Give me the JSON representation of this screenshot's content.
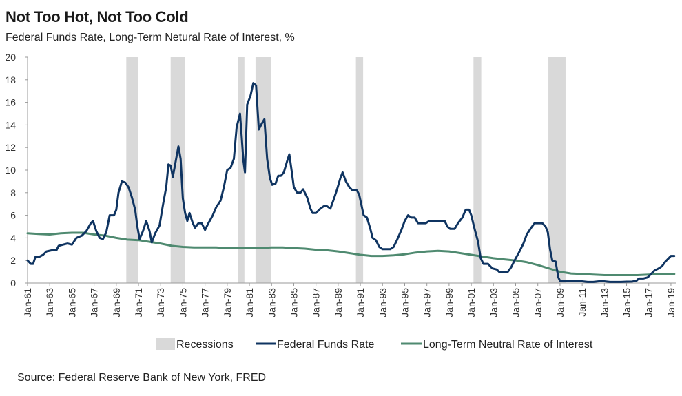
{
  "title": "Not Too Hot, Not Too Cold",
  "subtitle": "Federal Funds Rate, Long-Term Netural Rate of Interest, %",
  "source": "Source: Federal Reserve Bank of New York, FRED",
  "colors": {
    "fed": "#0f3461",
    "neutral": "#4f8a70",
    "recession": "#d9d9d9",
    "axis": "#9a9a9a"
  },
  "chart_data": {
    "type": "line",
    "title": "Not Too Hot, Not Too Cold",
    "subtitle": "Federal Funds Rate, Long-Term Netural Rate of Interest, %",
    "xlabel": "",
    "ylabel": "%",
    "xlim": [
      1961,
      2019.5
    ],
    "ylim": [
      0,
      20
    ],
    "y_ticks": [
      0,
      2,
      4,
      6,
      8,
      10,
      12,
      14,
      16,
      18,
      20
    ],
    "x_ticks": [
      {
        "value": 1961,
        "label": "Jan-61"
      },
      {
        "value": 1963,
        "label": "Jan-63"
      },
      {
        "value": 1965,
        "label": "Jan-65"
      },
      {
        "value": 1967,
        "label": "Jan-67"
      },
      {
        "value": 1969,
        "label": "Jan-69"
      },
      {
        "value": 1971,
        "label": "Jan-71"
      },
      {
        "value": 1973,
        "label": "Jan-73"
      },
      {
        "value": 1975,
        "label": "Jan-75"
      },
      {
        "value": 1977,
        "label": "Jan-77"
      },
      {
        "value": 1979,
        "label": "Jan-79"
      },
      {
        "value": 1981,
        "label": "Jan-81"
      },
      {
        "value": 1983,
        "label": "Jan-83"
      },
      {
        "value": 1985,
        "label": "Jan-85"
      },
      {
        "value": 1987,
        "label": "Jan-87"
      },
      {
        "value": 1989,
        "label": "Jan-89"
      },
      {
        "value": 1991,
        "label": "Jan-91"
      },
      {
        "value": 1993,
        "label": "Jan-93"
      },
      {
        "value": 1995,
        "label": "Jan-95"
      },
      {
        "value": 1997,
        "label": "Jan-97"
      },
      {
        "value": 1999,
        "label": "Jan-99"
      },
      {
        "value": 2001,
        "label": "Jan-01"
      },
      {
        "value": 2003,
        "label": "Jan-03"
      },
      {
        "value": 2005,
        "label": "Jan-05"
      },
      {
        "value": 2007,
        "label": "Jan-07"
      },
      {
        "value": 2009,
        "label": "Jan-09"
      },
      {
        "value": 2011,
        "label": "Jan-11"
      },
      {
        "value": 2013,
        "label": "Jan-13"
      },
      {
        "value": 2015,
        "label": "Jan-15"
      },
      {
        "value": 2017,
        "label": "Jan-17"
      },
      {
        "value": 2019,
        "label": "Jan-19"
      }
    ],
    "recessions": [
      {
        "start": 1969.9,
        "end": 1970.95
      },
      {
        "start": 1973.9,
        "end": 1975.2
      },
      {
        "start": 1980.0,
        "end": 1980.55
      },
      {
        "start": 1981.55,
        "end": 1982.95
      },
      {
        "start": 1990.6,
        "end": 1991.25
      },
      {
        "start": 2001.2,
        "end": 2001.9
      },
      {
        "start": 2007.95,
        "end": 2009.5
      }
    ],
    "series": [
      {
        "name": "Federal Funds Rate",
        "points": [
          [
            1961.0,
            2.0
          ],
          [
            1961.3,
            1.7
          ],
          [
            1961.5,
            1.7
          ],
          [
            1961.7,
            2.3
          ],
          [
            1962.0,
            2.3
          ],
          [
            1962.4,
            2.5
          ],
          [
            1962.7,
            2.8
          ],
          [
            1963.2,
            2.9
          ],
          [
            1963.6,
            2.9
          ],
          [
            1963.8,
            3.3
          ],
          [
            1964.2,
            3.4
          ],
          [
            1964.6,
            3.5
          ],
          [
            1965.0,
            3.4
          ],
          [
            1965.4,
            4.0
          ],
          [
            1965.9,
            4.2
          ],
          [
            1966.3,
            4.6
          ],
          [
            1966.7,
            5.3
          ],
          [
            1966.9,
            5.5
          ],
          [
            1967.2,
            4.6
          ],
          [
            1967.5,
            4.0
          ],
          [
            1967.8,
            3.9
          ],
          [
            1968.1,
            4.5
          ],
          [
            1968.4,
            6.0
          ],
          [
            1968.8,
            6.0
          ],
          [
            1969.0,
            6.5
          ],
          [
            1969.2,
            8.0
          ],
          [
            1969.5,
            9.0
          ],
          [
            1969.8,
            8.9
          ],
          [
            1970.1,
            8.5
          ],
          [
            1970.4,
            7.6
          ],
          [
            1970.7,
            6.5
          ],
          [
            1970.9,
            5.0
          ],
          [
            1971.1,
            3.9
          ],
          [
            1971.4,
            4.6
          ],
          [
            1971.7,
            5.5
          ],
          [
            1972.0,
            4.6
          ],
          [
            1972.2,
            3.6
          ],
          [
            1972.5,
            4.4
          ],
          [
            1972.9,
            5.1
          ],
          [
            1973.2,
            6.9
          ],
          [
            1973.5,
            8.5
          ],
          [
            1973.7,
            10.5
          ],
          [
            1973.9,
            10.4
          ],
          [
            1974.1,
            9.4
          ],
          [
            1974.3,
            10.5
          ],
          [
            1974.6,
            12.1
          ],
          [
            1974.8,
            11.0
          ],
          [
            1975.0,
            7.5
          ],
          [
            1975.2,
            6.2
          ],
          [
            1975.4,
            5.5
          ],
          [
            1975.6,
            6.2
          ],
          [
            1975.9,
            5.3
          ],
          [
            1976.1,
            4.9
          ],
          [
            1976.4,
            5.3
          ],
          [
            1976.7,
            5.3
          ],
          [
            1977.0,
            4.7
          ],
          [
            1977.3,
            5.3
          ],
          [
            1977.7,
            6.0
          ],
          [
            1978.0,
            6.7
          ],
          [
            1978.4,
            7.3
          ],
          [
            1978.7,
            8.5
          ],
          [
            1979.0,
            10.0
          ],
          [
            1979.3,
            10.2
          ],
          [
            1979.6,
            11.0
          ],
          [
            1979.85,
            13.8
          ],
          [
            1980.15,
            15.0
          ],
          [
            1980.3,
            13.0
          ],
          [
            1980.45,
            10.9
          ],
          [
            1980.6,
            9.8
          ],
          [
            1980.8,
            15.8
          ],
          [
            1981.1,
            16.6
          ],
          [
            1981.35,
            17.7
          ],
          [
            1981.6,
            17.5
          ],
          [
            1981.85,
            13.6
          ],
          [
            1982.1,
            14.1
          ],
          [
            1982.35,
            14.5
          ],
          [
            1982.6,
            11.0
          ],
          [
            1982.85,
            9.3
          ],
          [
            1983.05,
            8.7
          ],
          [
            1983.35,
            8.8
          ],
          [
            1983.6,
            9.5
          ],
          [
            1983.85,
            9.5
          ],
          [
            1984.1,
            9.8
          ],
          [
            1984.4,
            10.8
          ],
          [
            1984.6,
            11.4
          ],
          [
            1984.8,
            10.0
          ],
          [
            1985.0,
            8.5
          ],
          [
            1985.3,
            8.0
          ],
          [
            1985.6,
            8.0
          ],
          [
            1985.85,
            8.3
          ],
          [
            1986.2,
            7.6
          ],
          [
            1986.5,
            6.6
          ],
          [
            1986.7,
            6.2
          ],
          [
            1987.0,
            6.2
          ],
          [
            1987.4,
            6.6
          ],
          [
            1987.7,
            6.8
          ],
          [
            1988.0,
            6.8
          ],
          [
            1988.3,
            6.6
          ],
          [
            1988.6,
            7.4
          ],
          [
            1988.9,
            8.3
          ],
          [
            1989.2,
            9.3
          ],
          [
            1989.4,
            9.8
          ],
          [
            1989.7,
            9.0
          ],
          [
            1990.0,
            8.5
          ],
          [
            1990.3,
            8.2
          ],
          [
            1990.7,
            8.2
          ],
          [
            1990.9,
            7.8
          ],
          [
            1991.1,
            6.9
          ],
          [
            1991.3,
            6.0
          ],
          [
            1991.6,
            5.8
          ],
          [
            1991.9,
            4.8
          ],
          [
            1992.1,
            4.0
          ],
          [
            1992.4,
            3.8
          ],
          [
            1992.7,
            3.2
          ],
          [
            1993.0,
            3.0
          ],
          [
            1993.4,
            3.0
          ],
          [
            1993.7,
            3.0
          ],
          [
            1994.0,
            3.2
          ],
          [
            1994.3,
            3.8
          ],
          [
            1994.7,
            4.7
          ],
          [
            1995.0,
            5.5
          ],
          [
            1995.3,
            6.0
          ],
          [
            1995.6,
            5.8
          ],
          [
            1995.9,
            5.8
          ],
          [
            1996.2,
            5.3
          ],
          [
            1996.6,
            5.3
          ],
          [
            1996.9,
            5.3
          ],
          [
            1997.2,
            5.5
          ],
          [
            1997.6,
            5.5
          ],
          [
            1997.9,
            5.5
          ],
          [
            1998.3,
            5.5
          ],
          [
            1998.6,
            5.5
          ],
          [
            1998.85,
            5.0
          ],
          [
            1999.1,
            4.8
          ],
          [
            1999.5,
            4.8
          ],
          [
            1999.8,
            5.3
          ],
          [
            2000.2,
            5.8
          ],
          [
            2000.5,
            6.5
          ],
          [
            2000.8,
            6.5
          ],
          [
            2001.0,
            6.0
          ],
          [
            2001.3,
            4.8
          ],
          [
            2001.6,
            3.7
          ],
          [
            2001.85,
            2.2
          ],
          [
            2002.1,
            1.7
          ],
          [
            2002.5,
            1.7
          ],
          [
            2002.9,
            1.3
          ],
          [
            2003.3,
            1.2
          ],
          [
            2003.5,
            1.0
          ],
          [
            2003.9,
            1.0
          ],
          [
            2004.3,
            1.0
          ],
          [
            2004.6,
            1.4
          ],
          [
            2004.9,
            2.0
          ],
          [
            2005.3,
            2.7
          ],
          [
            2005.7,
            3.5
          ],
          [
            2006.0,
            4.3
          ],
          [
            2006.4,
            4.9
          ],
          [
            2006.7,
            5.3
          ],
          [
            2007.0,
            5.3
          ],
          [
            2007.4,
            5.3
          ],
          [
            2007.7,
            5.0
          ],
          [
            2007.9,
            4.5
          ],
          [
            2008.1,
            3.0
          ],
          [
            2008.3,
            2.0
          ],
          [
            2008.6,
            1.9
          ],
          [
            2008.85,
            0.5
          ],
          [
            2009.0,
            0.2
          ],
          [
            2009.5,
            0.2
          ],
          [
            2010.0,
            0.15
          ],
          [
            2010.5,
            0.2
          ],
          [
            2011.0,
            0.15
          ],
          [
            2011.5,
            0.1
          ],
          [
            2012.0,
            0.1
          ],
          [
            2012.5,
            0.15
          ],
          [
            2013.0,
            0.15
          ],
          [
            2013.5,
            0.1
          ],
          [
            2014.0,
            0.1
          ],
          [
            2014.5,
            0.1
          ],
          [
            2015.0,
            0.12
          ],
          [
            2015.5,
            0.13
          ],
          [
            2015.9,
            0.2
          ],
          [
            2016.1,
            0.4
          ],
          [
            2016.5,
            0.4
          ],
          [
            2016.9,
            0.5
          ],
          [
            2017.1,
            0.7
          ],
          [
            2017.5,
            1.1
          ],
          [
            2017.9,
            1.3
          ],
          [
            2018.2,
            1.5
          ],
          [
            2018.5,
            1.9
          ],
          [
            2018.8,
            2.2
          ],
          [
            2019.0,
            2.4
          ],
          [
            2019.3,
            2.4
          ]
        ]
      },
      {
        "name": "Long-Term Neutral Rate of Interest",
        "points": [
          [
            1961.0,
            4.4
          ],
          [
            1962.0,
            4.35
          ],
          [
            1963.0,
            4.3
          ],
          [
            1964.0,
            4.4
          ],
          [
            1965.0,
            4.45
          ],
          [
            1966.0,
            4.45
          ],
          [
            1967.0,
            4.3
          ],
          [
            1968.0,
            4.2
          ],
          [
            1969.0,
            4.0
          ],
          [
            1970.0,
            3.85
          ],
          [
            1971.0,
            3.8
          ],
          [
            1972.0,
            3.65
          ],
          [
            1973.0,
            3.5
          ],
          [
            1974.0,
            3.3
          ],
          [
            1975.0,
            3.2
          ],
          [
            1976.0,
            3.15
          ],
          [
            1977.0,
            3.15
          ],
          [
            1978.0,
            3.15
          ],
          [
            1979.0,
            3.1
          ],
          [
            1980.0,
            3.1
          ],
          [
            1981.0,
            3.1
          ],
          [
            1982.0,
            3.1
          ],
          [
            1983.0,
            3.15
          ],
          [
            1984.0,
            3.15
          ],
          [
            1985.0,
            3.1
          ],
          [
            1986.0,
            3.05
          ],
          [
            1987.0,
            2.95
          ],
          [
            1988.0,
            2.9
          ],
          [
            1989.0,
            2.8
          ],
          [
            1990.0,
            2.65
          ],
          [
            1991.0,
            2.5
          ],
          [
            1992.0,
            2.4
          ],
          [
            1993.0,
            2.4
          ],
          [
            1994.0,
            2.45
          ],
          [
            1995.0,
            2.55
          ],
          [
            1996.0,
            2.7
          ],
          [
            1997.0,
            2.8
          ],
          [
            1998.0,
            2.85
          ],
          [
            1999.0,
            2.8
          ],
          [
            2000.0,
            2.65
          ],
          [
            2001.0,
            2.5
          ],
          [
            2002.0,
            2.35
          ],
          [
            2003.0,
            2.2
          ],
          [
            2004.0,
            2.1
          ],
          [
            2005.0,
            2.0
          ],
          [
            2006.0,
            1.85
          ],
          [
            2007.0,
            1.6
          ],
          [
            2008.0,
            1.3
          ],
          [
            2009.0,
            1.0
          ],
          [
            2010.0,
            0.85
          ],
          [
            2011.0,
            0.8
          ],
          [
            2012.0,
            0.75
          ],
          [
            2013.0,
            0.7
          ],
          [
            2014.0,
            0.7
          ],
          [
            2015.0,
            0.7
          ],
          [
            2016.0,
            0.7
          ],
          [
            2017.0,
            0.75
          ],
          [
            2018.0,
            0.8
          ],
          [
            2019.0,
            0.8
          ],
          [
            2019.3,
            0.8
          ]
        ]
      }
    ],
    "legend": [
      "Recessions",
      "Federal Funds Rate",
      "Long-Term Neutral Rate of Interest"
    ]
  }
}
